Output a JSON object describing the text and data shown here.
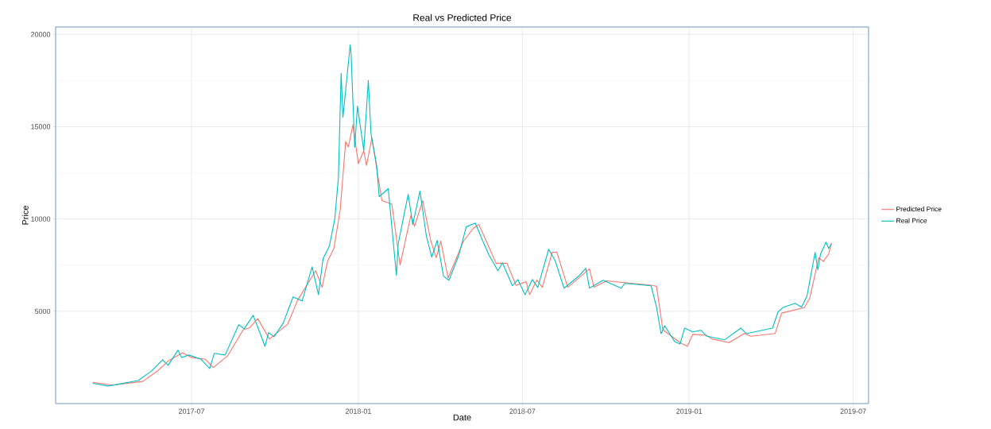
{
  "chart_data": {
    "type": "line",
    "title": "Real vs Predicted Price",
    "xlabel": "Date",
    "ylabel": "Price",
    "xlim": [
      "2017-02-01",
      "2019-07-18"
    ],
    "ylim": [
      0,
      20400
    ],
    "xticks": [
      "2017-07",
      "2018-01",
      "2018-07",
      "2019-01",
      "2019-07"
    ],
    "yticks": [
      5000,
      10000,
      15000,
      20000
    ],
    "grid": true,
    "legend": "right",
    "line_style": "solid",
    "series": [
      {
        "name": "Predicted Price",
        "color": "#f8766d",
        "x": [
          "2017-03-14",
          "2017-04-05",
          "2017-05-08",
          "2017-05-24",
          "2017-06-05",
          "2017-06-21",
          "2017-07-01",
          "2017-07-16",
          "2017-07-25",
          "2017-08-10",
          "2017-08-27",
          "2017-09-03",
          "2017-09-12",
          "2017-09-25",
          "2017-10-05",
          "2017-10-15",
          "2017-10-26",
          "2017-11-15",
          "2017-11-22",
          "2017-11-28",
          "2017-12-05",
          "2017-12-12",
          "2017-12-18",
          "2017-12-21",
          "2017-12-26",
          "2018-01-01",
          "2018-01-07",
          "2018-01-10",
          "2018-01-16",
          "2018-01-22",
          "2018-01-27",
          "2018-02-07",
          "2018-02-16",
          "2018-02-28",
          "2018-03-04",
          "2018-03-13",
          "2018-03-22",
          "2018-03-28",
          "2018-04-02",
          "2018-04-10",
          "2018-04-27",
          "2018-05-08",
          "2018-05-14",
          "2018-05-24",
          "2018-06-02",
          "2018-06-14",
          "2018-06-24",
          "2018-07-05",
          "2018-07-09",
          "2018-07-17",
          "2018-07-23",
          "2018-08-03",
          "2018-08-08",
          "2018-08-20",
          "2018-09-06",
          "2018-09-13",
          "2018-09-18",
          "2018-10-02",
          "2018-11-22",
          "2018-11-26",
          "2018-12-03",
          "2018-12-22",
          "2018-12-30",
          "2019-01-05",
          "2019-01-20",
          "2019-01-26",
          "2019-02-14",
          "2019-03-03",
          "2019-03-10",
          "2019-04-06",
          "2019-04-13",
          "2019-05-08",
          "2019-05-14",
          "2019-05-24",
          "2019-05-29",
          "2019-06-04",
          "2019-06-07"
        ],
        "values": [
          1150,
          1000,
          1200,
          1750,
          2300,
          2750,
          2500,
          2400,
          1950,
          2600,
          4000,
          4100,
          4600,
          3500,
          3900,
          4300,
          5600,
          7200,
          6300,
          7700,
          8400,
          10500,
          14200,
          13900,
          15100,
          13000,
          13700,
          12900,
          14400,
          12500,
          11000,
          10800,
          7500,
          10200,
          9600,
          11000,
          8800,
          7900,
          8800,
          6800,
          8800,
          9500,
          9700,
          8600,
          7600,
          7600,
          6400,
          6600,
          5900,
          6700,
          6300,
          8200,
          8200,
          6300,
          7000,
          7300,
          6300,
          6650,
          6400,
          6350,
          4000,
          3300,
          3100,
          3750,
          3700,
          3500,
          3300,
          3800,
          3650,
          3800,
          4900,
          5200,
          5700,
          7900,
          7700,
          8100,
          8700
        ]
      },
      {
        "name": "Real Price",
        "color": "#00bfc4",
        "x": [
          "2017-03-14",
          "2017-03-31",
          "2017-05-03",
          "2017-05-18",
          "2017-05-30",
          "2017-06-05",
          "2017-06-16",
          "2017-06-20",
          "2017-06-28",
          "2017-07-11",
          "2017-07-21",
          "2017-07-26",
          "2017-08-07",
          "2017-08-22",
          "2017-08-28",
          "2017-09-07",
          "2017-09-11",
          "2017-09-20",
          "2017-09-24",
          "2017-09-30",
          "2017-10-10",
          "2017-10-21",
          "2017-10-31",
          "2017-11-11",
          "2017-11-18",
          "2017-11-23",
          "2017-11-30",
          "2017-12-06",
          "2017-12-10",
          "2017-12-13",
          "2017-12-15",
          "2017-12-18",
          "2017-12-23",
          "2017-12-24",
          "2017-12-28",
          "2017-12-31",
          "2018-01-07",
          "2018-01-12",
          "2018-01-15",
          "2018-01-21",
          "2018-01-24",
          "2018-02-03",
          "2018-02-12",
          "2018-02-14",
          "2018-02-25",
          "2018-03-02",
          "2018-03-10",
          "2018-03-17",
          "2018-03-23",
          "2018-03-29",
          "2018-04-05",
          "2018-04-11",
          "2018-04-22",
          "2018-04-30",
          "2018-05-10",
          "2018-05-18",
          "2018-05-25",
          "2018-06-04",
          "2018-06-09",
          "2018-06-20",
          "2018-06-26",
          "2018-07-04",
          "2018-07-12",
          "2018-07-18",
          "2018-07-30",
          "2018-08-06",
          "2018-08-16",
          "2018-09-02",
          "2018-09-09",
          "2018-09-13",
          "2018-09-28",
          "2018-10-18",
          "2018-10-22",
          "2018-11-11",
          "2018-11-20",
          "2018-11-26",
          "2018-12-01",
          "2018-12-05",
          "2018-12-16",
          "2018-12-22",
          "2018-12-27",
          "2019-01-05",
          "2019-01-14",
          "2019-01-20",
          "2019-02-09",
          "2019-02-27",
          "2019-03-05",
          "2019-04-03",
          "2019-04-09",
          "2019-04-15",
          "2019-04-28",
          "2019-05-05",
          "2019-05-11",
          "2019-05-20",
          "2019-05-23",
          "2019-05-26",
          "2019-06-01",
          "2019-06-04",
          "2019-06-07"
        ],
        "values": [
          1100,
          950,
          1250,
          1770,
          2370,
          2070,
          2890,
          2500,
          2630,
          2410,
          1900,
          2720,
          2630,
          4270,
          4050,
          4780,
          4270,
          3100,
          3840,
          3620,
          4350,
          5780,
          5560,
          7410,
          5900,
          7840,
          8530,
          10000,
          12240,
          17890,
          15520,
          16980,
          19440,
          18920,
          13880,
          16120,
          13710,
          17500,
          14610,
          12970,
          11210,
          11640,
          6940,
          8660,
          11340,
          9700,
          11510,
          9090,
          7930,
          8840,
          6900,
          6680,
          8060,
          9570,
          9780,
          8840,
          8060,
          7200,
          7630,
          6380,
          6720,
          5900,
          6720,
          6290,
          8360,
          7760,
          6250,
          6940,
          7330,
          6250,
          6680,
          6250,
          6510,
          6420,
          6380,
          5220,
          3790,
          4220,
          3360,
          3230,
          4090,
          3880,
          3970,
          3660,
          3450,
          4090,
          3790,
          4090,
          4960,
          5220,
          5430,
          5220,
          5820,
          8190,
          7240,
          8100,
          8750,
          8400,
          8660
        ]
      }
    ]
  }
}
